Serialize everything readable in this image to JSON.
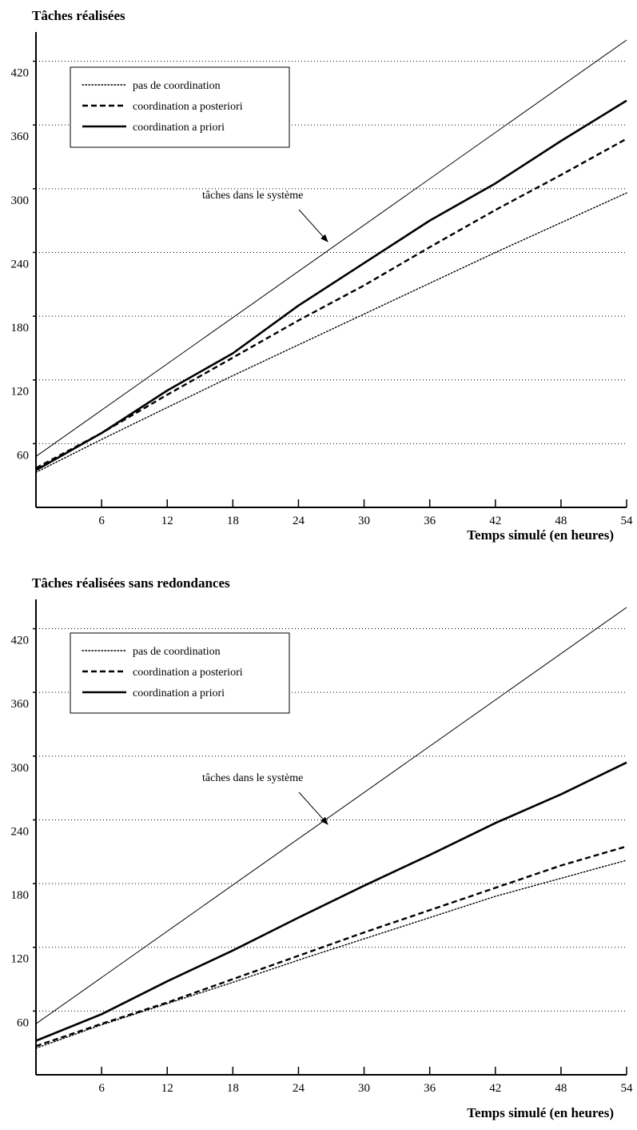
{
  "chart_data": [
    {
      "type": "line",
      "title": "Tâches réalisées",
      "xlabel": "Temps simulé (en heures)",
      "ylabel": "",
      "xlim": [
        0,
        54
      ],
      "ylim": [
        0,
        440
      ],
      "x_ticks": [
        6,
        12,
        18,
        24,
        30,
        36,
        42,
        48,
        54
      ],
      "y_ticks": [
        60,
        120,
        180,
        240,
        300,
        360,
        420
      ],
      "x_grid": false,
      "y_grid": true,
      "legend_position": "top-left",
      "annotation": "tâches dans le système",
      "series": [
        {
          "name": "pas de coordination",
          "style": "dotted",
          "x": [
            0,
            6,
            12,
            18,
            24,
            30,
            36,
            42,
            48,
            54
          ],
          "y": [
            33,
            64,
            94,
            124,
            153,
            182,
            211,
            240,
            268,
            296
          ]
        },
        {
          "name": "coordination a posteriori",
          "style": "dashed",
          "x": [
            0,
            6,
            12,
            18,
            24,
            30,
            36,
            42,
            48,
            54
          ],
          "y": [
            37,
            70,
            106,
            141,
            176,
            209,
            245,
            280,
            313,
            347
          ]
        },
        {
          "name": "coordination a priori",
          "style": "solid-thick",
          "x": [
            0,
            6,
            12,
            18,
            24,
            30,
            36,
            42,
            48,
            54
          ],
          "y": [
            35,
            70,
            110,
            145,
            190,
            230,
            270,
            305,
            345,
            383
          ]
        },
        {
          "name": "",
          "style": "solid-thin",
          "x": [
            0,
            54
          ],
          "y": [
            48,
            440
          ]
        }
      ]
    },
    {
      "type": "line",
      "title": "Tâches réalisées sans redondances",
      "xlabel": "Temps simulé (en heures)",
      "ylabel": "",
      "xlim": [
        0,
        54
      ],
      "ylim": [
        0,
        440
      ],
      "x_ticks": [
        6,
        12,
        18,
        24,
        30,
        36,
        42,
        48,
        54
      ],
      "y_ticks": [
        60,
        120,
        180,
        240,
        300,
        360,
        420
      ],
      "x_grid": false,
      "y_grid": true,
      "legend_position": "top-left",
      "annotation": "tâches dans le système",
      "series": [
        {
          "name": "pas de coordination",
          "style": "dotted",
          "x": [
            0,
            6,
            12,
            18,
            24,
            30,
            36,
            42,
            48,
            54
          ],
          "y": [
            25,
            47,
            67,
            87,
            108,
            128,
            148,
            168,
            185,
            202
          ]
        },
        {
          "name": "coordination a posteriori",
          "style": "dashed",
          "x": [
            0,
            6,
            12,
            18,
            24,
            30,
            36,
            42,
            48,
            54
          ],
          "y": [
            27,
            48,
            68,
            90,
            112,
            134,
            155,
            176,
            197,
            215
          ]
        },
        {
          "name": "coordination a priori",
          "style": "solid-thick",
          "x": [
            0,
            6,
            12,
            18,
            24,
            30,
            36,
            42,
            48,
            54
          ],
          "y": [
            32,
            57,
            88,
            117,
            148,
            178,
            207,
            237,
            264,
            294
          ]
        },
        {
          "name": "",
          "style": "solid-thin",
          "x": [
            0,
            54
          ],
          "y": [
            48,
            440
          ]
        }
      ]
    }
  ]
}
